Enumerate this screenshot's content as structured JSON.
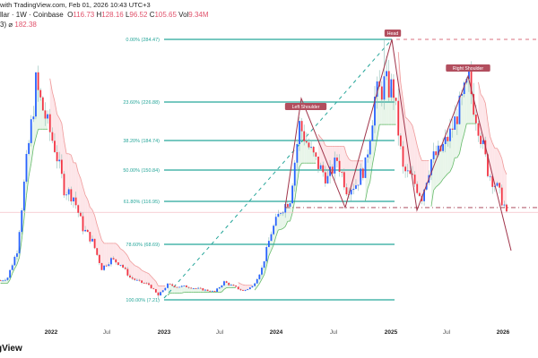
{
  "header": {
    "source": "with TradingView.com, Feb 01, 2026 10:43 UTC+3",
    "symbol": "llar · 1W · Coinbase",
    "o_label": "O",
    "o": "116.73",
    "h_label": "H",
    "h": "128.16",
    "l_label": "L",
    "l": "96.52",
    "c_label": "C",
    "c": "105.65",
    "vol_label": "Vol",
    "vol": "9.34M",
    "indicator": "3) ⌀",
    "indicator_value": "182.38"
  },
  "logo": "gView",
  "chart_data": {
    "type": "candlestick",
    "start_month": "2021-08",
    "monthly_closes": [
      32,
      62,
      160,
      243,
      211,
      177,
      131,
      122,
      87,
      72,
      42,
      52,
      47,
      32,
      27,
      24,
      12,
      24,
      22,
      22,
      20,
      18,
      16,
      27,
      22,
      17,
      22,
      42,
      82,
      107,
      120,
      202,
      177,
      156,
      141,
      163,
      131,
      136,
      156,
      230,
      243,
      238,
      151,
      141,
      122,
      163,
      173,
      192,
      220,
      246,
      202,
      151,
      131,
      106
    ],
    "extremes": [
      {
        "month": "2021-11",
        "high": 254
      },
      {
        "month": "2024-12",
        "high": 284.47
      },
      {
        "month": "2025-09",
        "high": 250
      },
      {
        "month": "2022-12",
        "low": 7.21
      }
    ],
    "x_ticks": [
      "2022",
      "Jul",
      "2023",
      "Jul",
      "2024",
      "Jul",
      "2025",
      "Jul",
      "2026"
    ],
    "fib_levels": [
      {
        "label": "0.00% (284.47)",
        "value": 284.47
      },
      {
        "label": "23.60% (226.88)",
        "value": 226.88
      },
      {
        "label": "38.20% (184.74)",
        "value": 184.74
      },
      {
        "label": "50.00% (150.84)",
        "value": 150.84
      },
      {
        "label": "61.80% (116.95)",
        "value": 116.95
      },
      {
        "label": "78.60% (68.69)",
        "value": 68.69
      },
      {
        "label": "100.00% (7.21)",
        "value": 7.21
      }
    ],
    "pattern_labels": {
      "left": "Left Shoulder",
      "head": "Head",
      "right": "Right Shoulder"
    },
    "neckline": 110,
    "last_price": 105.65,
    "colors": {
      "up": "#2962ff",
      "down": "#f23645",
      "fib": "#26a69a",
      "pattern": "#a0344a",
      "st_up": "#e8f5e9",
      "st_down": "#fde5e8"
    }
  }
}
